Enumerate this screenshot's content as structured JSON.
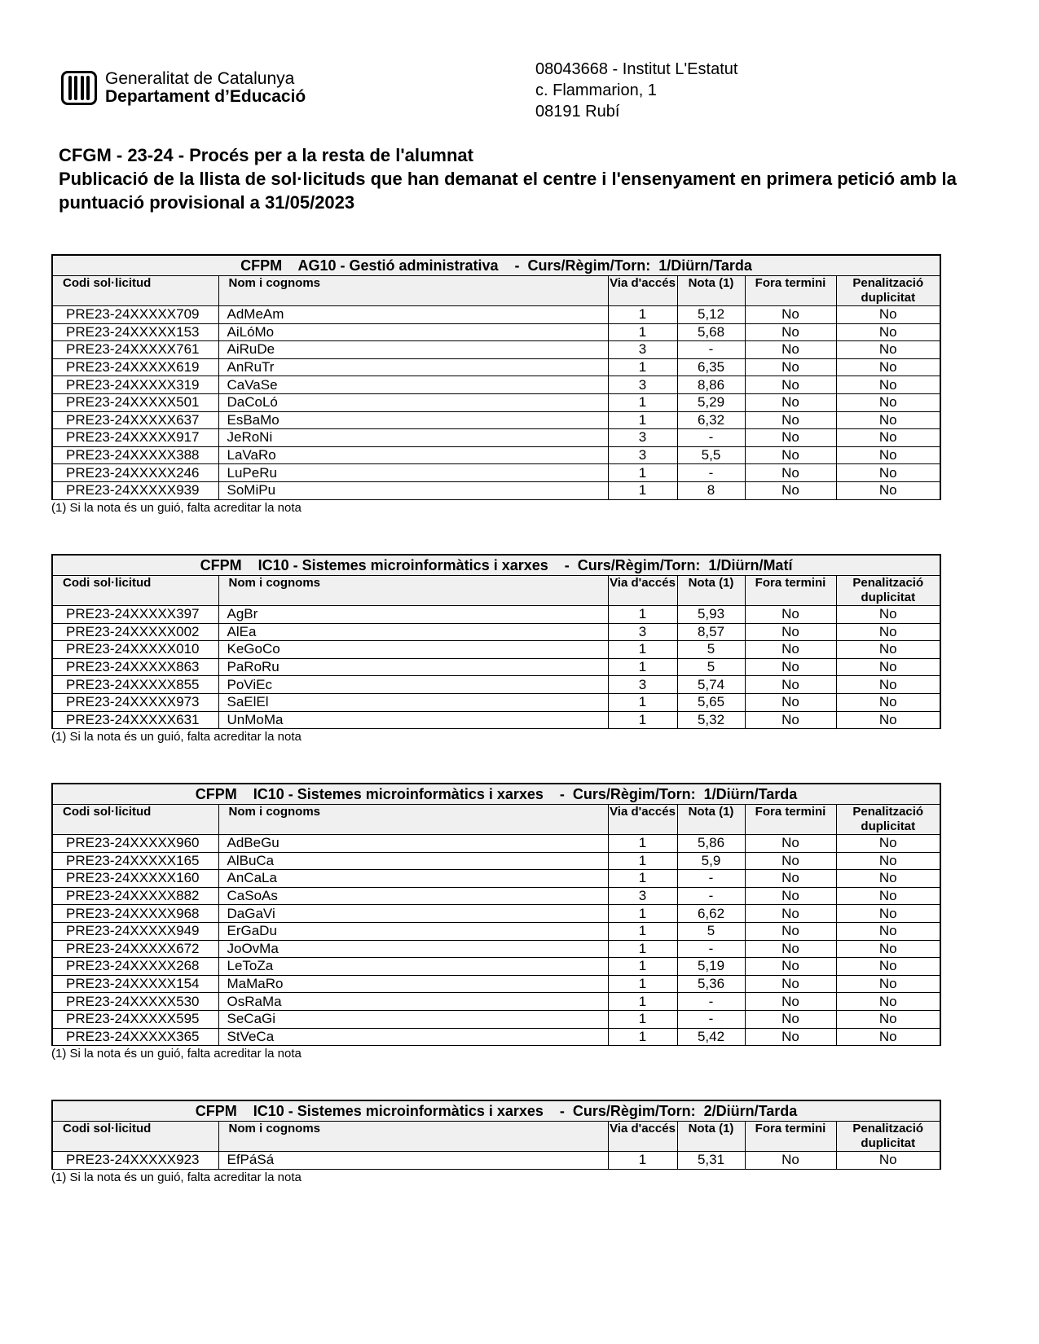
{
  "header": {
    "logo": {
      "line1": "Generalitat de Catalunya",
      "line2": "Departament d’Educació"
    },
    "school": {
      "line1": "08043668 - Institut L'Estatut",
      "line2": "c. Flammarion, 1",
      "line3": "08191 Rubí"
    }
  },
  "title": {
    "line1": "CFGM - 23-24 - Procés per a la resta de l'alumnat",
    "line2": "Publicació de la llista de sol·licituds que han demanat el centre i l'ensenyament en primera petició amb la puntuació provisional a 31/05/2023"
  },
  "columns": [
    "Codi sol·licitud",
    "Nom i cognoms",
    "Via d'accés",
    "Nota (1)",
    "Fora termini",
    "Penalització duplicitat"
  ],
  "footnote": "(1) Si la nota és un guió, falta acreditar la nota",
  "tables": [
    {
      "caption": "CFPM    AG10 - Gestió administrativa    -  Curs/Règim/Torn:  1/Diürn/Tarda",
      "rows": [
        [
          "PRE23-24XXXXX709",
          "AdMeAm",
          "1",
          "5,12",
          "No",
          "No"
        ],
        [
          "PRE23-24XXXXX153",
          "AiLóMo",
          "1",
          "5,68",
          "No",
          "No"
        ],
        [
          "PRE23-24XXXXX761",
          "AiRuDe",
          "3",
          "-",
          "No",
          "No"
        ],
        [
          "PRE23-24XXXXX619",
          "AnRuTr",
          "1",
          "6,35",
          "No",
          "No"
        ],
        [
          "PRE23-24XXXXX319",
          "CaVaSe",
          "3",
          "8,86",
          "No",
          "No"
        ],
        [
          "PRE23-24XXXXX501",
          "DaCoLó",
          "1",
          "5,29",
          "No",
          "No"
        ],
        [
          "PRE23-24XXXXX637",
          "EsBaMo",
          "1",
          "6,32",
          "No",
          "No"
        ],
        [
          "PRE23-24XXXXX917",
          "JeRoNi",
          "3",
          "-",
          "No",
          "No"
        ],
        [
          "PRE23-24XXXXX388",
          "LaVaRo",
          "3",
          "5,5",
          "No",
          "No"
        ],
        [
          "PRE23-24XXXXX246",
          "LuPeRu",
          "1",
          "-",
          "No",
          "No"
        ],
        [
          "PRE23-24XXXXX939",
          "SoMiPu",
          "1",
          "8",
          "No",
          "No"
        ]
      ]
    },
    {
      "caption": "CFPM    IC10 - Sistemes microinformàtics i xarxes    -  Curs/Règim/Torn:  1/Diürn/Matí",
      "rows": [
        [
          "PRE23-24XXXXX397",
          "AgBr",
          "1",
          "5,93",
          "No",
          "No"
        ],
        [
          "PRE23-24XXXXX002",
          "AlEa",
          "3",
          "8,57",
          "No",
          "No"
        ],
        [
          "PRE23-24XXXXX010",
          "KeGoCo",
          "1",
          "5",
          "No",
          "No"
        ],
        [
          "PRE23-24XXXXX863",
          "PaRoRu",
          "1",
          "5",
          "No",
          "No"
        ],
        [
          "PRE23-24XXXXX855",
          "PoViEc",
          "3",
          "5,74",
          "No",
          "No"
        ],
        [
          "PRE23-24XXXXX973",
          "SaElEl",
          "1",
          "5,65",
          "No",
          "No"
        ],
        [
          "PRE23-24XXXXX631",
          "UnMoMa",
          "1",
          "5,32",
          "No",
          "No"
        ]
      ]
    },
    {
      "caption": "CFPM    IC10 - Sistemes microinformàtics i xarxes    -  Curs/Règim/Torn:  1/Diürn/Tarda",
      "rows": [
        [
          "PRE23-24XXXXX960",
          "AdBeGu",
          "1",
          "5,86",
          "No",
          "No"
        ],
        [
          "PRE23-24XXXXX165",
          "AlBuCa",
          "1",
          "5,9",
          "No",
          "No"
        ],
        [
          "PRE23-24XXXXX160",
          "AnCaLa",
          "1",
          "-",
          "No",
          "No"
        ],
        [
          "PRE23-24XXXXX882",
          "CaSoAs",
          "3",
          "-",
          "No",
          "No"
        ],
        [
          "PRE23-24XXXXX968",
          "DaGaVi",
          "1",
          "6,62",
          "No",
          "No"
        ],
        [
          "PRE23-24XXXXX949",
          "ErGaDu",
          "1",
          "5",
          "No",
          "No"
        ],
        [
          "PRE23-24XXXXX672",
          "JoOvMa",
          "1",
          "-",
          "No",
          "No"
        ],
        [
          "PRE23-24XXXXX268",
          "LeToZa",
          "1",
          "5,19",
          "No",
          "No"
        ],
        [
          "PRE23-24XXXXX154",
          "MaMaRo",
          "1",
          "5,36",
          "No",
          "No"
        ],
        [
          "PRE23-24XXXXX530",
          "OsRaMa",
          "1",
          "-",
          "No",
          "No"
        ],
        [
          "PRE23-24XXXXX595",
          "SeCaGi",
          "1",
          "-",
          "No",
          "No"
        ],
        [
          "PRE23-24XXXXX365",
          "StVeCa",
          "1",
          "5,42",
          "No",
          "No"
        ]
      ]
    },
    {
      "caption": "CFPM    IC10 - Sistemes microinformàtics i xarxes    -  Curs/Règim/Torn:  2/Diürn/Tarda",
      "rows": [
        [
          "PRE23-24XXXXX923",
          "EfPáSá",
          "1",
          "5,31",
          "No",
          "No"
        ]
      ]
    }
  ]
}
